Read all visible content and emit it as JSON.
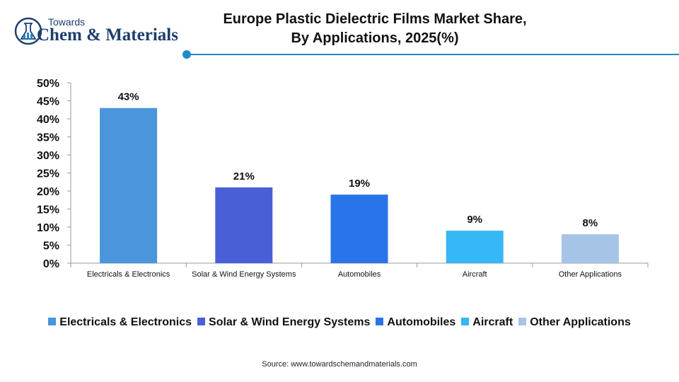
{
  "logo": {
    "top_text": "Towards",
    "main_text": "Chem & Materials",
    "icon": "flask-chart-icon"
  },
  "title": {
    "line1": "Europe Plastic Dielectric Films Market Share,",
    "line2": "By Applications, 2025(%)"
  },
  "colors": {
    "accent": "#1e8ac8",
    "brand": "#1d3f6e"
  },
  "chart_data": {
    "type": "bar",
    "categories": [
      "Electricals & Electronics",
      "Solar & Wind Energy Systems",
      "Automobiles",
      "Aircraft",
      "Other Applications"
    ],
    "values": [
      43,
      21,
      19,
      9,
      8
    ],
    "data_labels": [
      "43%",
      "21%",
      "19%",
      "9%",
      "8%"
    ],
    "colors": [
      "#4a95dc",
      "#4a5fd6",
      "#2a74ea",
      "#35b8f5",
      "#a5c4e6"
    ],
    "yticks": [
      "0%",
      "5%",
      "10%",
      "15%",
      "20%",
      "25%",
      "30%",
      "35%",
      "40%",
      "45%",
      "50%"
    ],
    "ylim": [
      0,
      50
    ],
    "grid": false,
    "legend_position": "bottom",
    "title": "Europe Plastic Dielectric Films Market Share, By Applications, 2025(%)"
  },
  "source": "Source:  www.towardschemandmaterials.com"
}
